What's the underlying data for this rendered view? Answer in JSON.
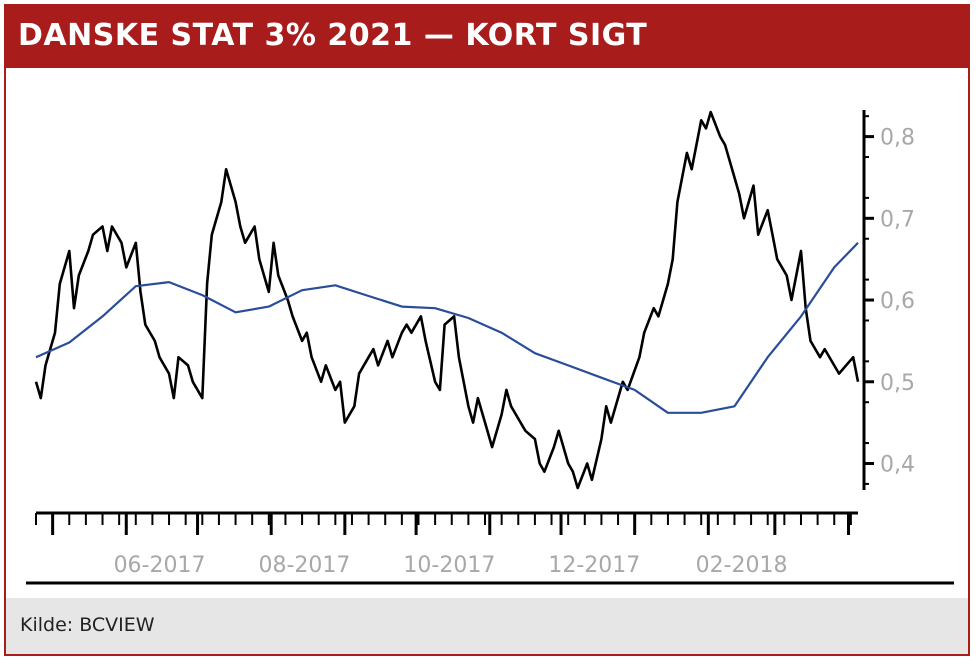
{
  "title": "DANSKE STAT 3% 2021 — KORT SIGT",
  "source": "Kilde: BCVIEW",
  "colors": {
    "header": "#a81c1c",
    "price_line": "#000000",
    "ma_line": "#2a4d9a",
    "axis": "#000000",
    "tick_label": "#a8a8a8",
    "footer_bg": "#e6e6e6"
  },
  "chart_data": {
    "type": "line",
    "title": "DANSKE STAT 3% 2021 — KORT SIGT",
    "xlabel": "",
    "ylabel": "",
    "x_tick_labels": [
      "06-2017",
      "08-2017",
      "10-2017",
      "12-2017",
      "02-2018"
    ],
    "x_range": [
      "2017-04-24",
      "2018-04-05"
    ],
    "y_tick_labels": [
      "0,4",
      "0,5",
      "0,6",
      "0,7",
      "0,8"
    ],
    "y_ticks": [
      0.4,
      0.5,
      0.6,
      0.7,
      0.8
    ],
    "ylim": [
      0.37,
      0.835
    ],
    "grid": false,
    "legend": "none",
    "series": [
      {
        "color": "#000000",
        "x": [
          "2017-04-24",
          "2017-04-26",
          "2017-04-28",
          "2017-05-02",
          "2017-05-04",
          "2017-05-08",
          "2017-05-10",
          "2017-05-12",
          "2017-05-16",
          "2017-05-18",
          "2017-05-22",
          "2017-05-24",
          "2017-05-26",
          "2017-05-30",
          "2017-06-01",
          "2017-06-05",
          "2017-06-07",
          "2017-06-09",
          "2017-06-13",
          "2017-06-15",
          "2017-06-19",
          "2017-06-21",
          "2017-06-23",
          "2017-06-27",
          "2017-06-29",
          "2017-07-03",
          "2017-07-05",
          "2017-07-07",
          "2017-07-11",
          "2017-07-13",
          "2017-07-17",
          "2017-07-19",
          "2017-07-21",
          "2017-07-25",
          "2017-07-27",
          "2017-07-31",
          "2017-08-02",
          "2017-08-04",
          "2017-08-08",
          "2017-08-10",
          "2017-08-14",
          "2017-08-16",
          "2017-08-18",
          "2017-08-22",
          "2017-08-24",
          "2017-08-28",
          "2017-08-30",
          "2017-09-01",
          "2017-09-05",
          "2017-09-07",
          "2017-09-11",
          "2017-09-13",
          "2017-09-15",
          "2017-09-19",
          "2017-09-21",
          "2017-09-25",
          "2017-09-27",
          "2017-09-29",
          "2017-10-03",
          "2017-10-05",
          "2017-10-09",
          "2017-10-11",
          "2017-10-13",
          "2017-10-17",
          "2017-10-19",
          "2017-10-23",
          "2017-10-25",
          "2017-10-27",
          "2017-10-31",
          "2017-11-02",
          "2017-11-06",
          "2017-11-08",
          "2017-11-10",
          "2017-11-14",
          "2017-11-16",
          "2017-11-20",
          "2017-11-22",
          "2017-11-24",
          "2017-11-28",
          "2017-11-30",
          "2017-12-04",
          "2017-12-06",
          "2017-12-08",
          "2017-12-12",
          "2017-12-14",
          "2017-12-18",
          "2017-12-20",
          "2017-12-22",
          "2017-12-27",
          "2017-12-29",
          "2018-01-03",
          "2018-01-05",
          "2018-01-09",
          "2018-01-11",
          "2018-01-15",
          "2018-01-17",
          "2018-01-19",
          "2018-01-23",
          "2018-01-25",
          "2018-01-29",
          "2018-01-31",
          "2018-02-02",
          "2018-02-06",
          "2018-02-08",
          "2018-02-12",
          "2018-02-14",
          "2018-02-16",
          "2018-02-20",
          "2018-02-22",
          "2018-02-26",
          "2018-02-28",
          "2018-03-02",
          "2018-03-06",
          "2018-03-08",
          "2018-03-12",
          "2018-03-14",
          "2018-03-16",
          "2018-03-20",
          "2018-03-22",
          "2018-03-26",
          "2018-03-28",
          "2018-04-03",
          "2018-04-05"
        ],
        "values": [
          0.5,
          0.48,
          0.52,
          0.56,
          0.62,
          0.66,
          0.59,
          0.63,
          0.66,
          0.68,
          0.69,
          0.66,
          0.69,
          0.67,
          0.64,
          0.67,
          0.61,
          0.57,
          0.55,
          0.53,
          0.51,
          0.48,
          0.53,
          0.52,
          0.5,
          0.48,
          0.62,
          0.68,
          0.72,
          0.76,
          0.72,
          0.69,
          0.67,
          0.69,
          0.65,
          0.61,
          0.67,
          0.63,
          0.6,
          0.58,
          0.55,
          0.56,
          0.53,
          0.5,
          0.52,
          0.49,
          0.5,
          0.45,
          0.47,
          0.51,
          0.53,
          0.54,
          0.52,
          0.55,
          0.53,
          0.56,
          0.57,
          0.56,
          0.58,
          0.55,
          0.5,
          0.49,
          0.57,
          0.58,
          0.53,
          0.47,
          0.45,
          0.48,
          0.44,
          0.42,
          0.46,
          0.49,
          0.47,
          0.45,
          0.44,
          0.43,
          0.4,
          0.39,
          0.42,
          0.44,
          0.4,
          0.39,
          0.37,
          0.4,
          0.38,
          0.43,
          0.47,
          0.45,
          0.5,
          0.49,
          0.53,
          0.56,
          0.59,
          0.58,
          0.62,
          0.65,
          0.72,
          0.78,
          0.76,
          0.82,
          0.81,
          0.83,
          0.8,
          0.79,
          0.75,
          0.73,
          0.7,
          0.74,
          0.68,
          0.71,
          0.68,
          0.65,
          0.63,
          0.6,
          0.66,
          0.59,
          0.55,
          0.53,
          0.54,
          0.52,
          0.51,
          0.53,
          0.5
        ]
      },
      {
        "color": "#2a4d9a",
        "x": [
          "2017-04-24",
          "2017-05-08",
          "2017-05-22",
          "2017-06-05",
          "2017-06-19",
          "2017-07-03",
          "2017-07-17",
          "2017-07-31",
          "2017-08-14",
          "2017-08-28",
          "2017-09-11",
          "2017-09-25",
          "2017-10-09",
          "2017-10-23",
          "2017-11-06",
          "2017-11-20",
          "2017-12-04",
          "2017-12-18",
          "2018-01-01",
          "2018-01-15",
          "2018-01-29",
          "2018-02-12",
          "2018-02-26",
          "2018-03-12",
          "2018-03-26",
          "2018-04-05"
        ],
        "values": [
          0.53,
          0.548,
          0.58,
          0.617,
          0.622,
          0.606,
          0.585,
          0.592,
          0.612,
          0.618,
          0.605,
          0.592,
          0.59,
          0.578,
          0.56,
          0.535,
          0.52,
          0.505,
          0.49,
          0.462,
          0.462,
          0.47,
          0.53,
          0.58,
          0.64,
          0.67
        ]
      }
    ]
  }
}
